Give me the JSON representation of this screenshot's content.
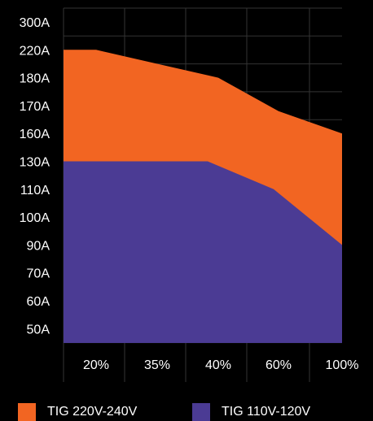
{
  "chart_data": {
    "type": "area",
    "x_categories": [
      "20%",
      "35%",
      "40%",
      "60%",
      "100%"
    ],
    "y_categories": [
      "50A",
      "60A",
      "70A",
      "90A",
      "100A",
      "110A",
      "130A",
      "160A",
      "170A",
      "180A",
      "220A",
      "300A"
    ],
    "series": [
      {
        "name": "TIG 220V-240V",
        "color": "#f26522",
        "points": [
          {
            "x": "20%",
            "y": "220A"
          },
          {
            "x": "35%",
            "y": "200A"
          },
          {
            "x": "40%",
            "y": "180A"
          },
          {
            "x": "60%",
            "y": "168A"
          },
          {
            "x": "100%",
            "y": "160A"
          }
        ]
      },
      {
        "name": "TIG 110V-120V",
        "color": "#4b3b94",
        "points": [
          {
            "x": "20%",
            "y": "130A"
          },
          {
            "x": "40%",
            "y": "130A"
          },
          {
            "x": "60%",
            "y": "110A"
          },
          {
            "x": "100%",
            "y": "90A"
          }
        ]
      }
    ],
    "grid": true,
    "grid_color": "#333333",
    "legend_position": "bottom"
  }
}
